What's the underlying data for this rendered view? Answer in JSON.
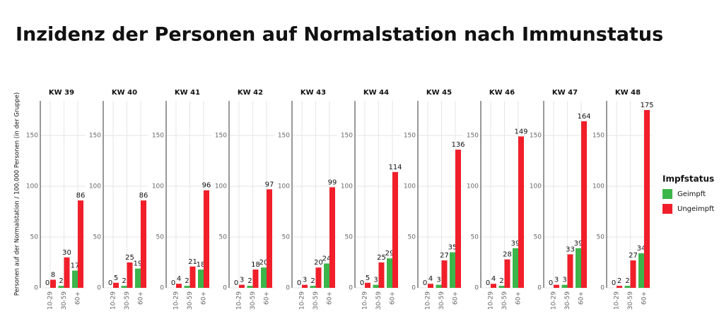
{
  "title": "Inzidenz der Personen auf Normalstation nach Immunstatus",
  "y_label": "Personen auf der Normalstation / 100.000 Personen (in der Gruppe)",
  "legend_title": "Impfstatus",
  "chart_data": [
    {
      "type": "bar",
      "title": "KW 39",
      "categories": [
        "10-29",
        "30-59",
        "60+"
      ],
      "series": [
        {
          "name": "Geimpft",
          "color": "#3cb54a",
          "values": [
            0,
            2,
            17
          ]
        },
        {
          "name": "Ungeimpft",
          "color": "#f01f2a",
          "values": [
            8,
            30,
            86
          ]
        }
      ],
      "ylim": [
        0,
        184
      ],
      "yticks": [
        0,
        50,
        100,
        150
      ],
      "grid": true
    },
    {
      "type": "bar",
      "title": "KW 40",
      "categories": [
        "10-29",
        "30-59",
        "60+"
      ],
      "series": [
        {
          "name": "Geimpft",
          "color": "#3cb54a",
          "values": [
            0,
            2,
            19
          ]
        },
        {
          "name": "Ungeimpft",
          "color": "#f01f2a",
          "values": [
            5,
            25,
            86
          ]
        }
      ],
      "ylim": [
        0,
        184
      ],
      "yticks": [
        0,
        50,
        100,
        150
      ],
      "grid": true
    },
    {
      "type": "bar",
      "title": "KW 41",
      "categories": [
        "10-29",
        "30-59",
        "60+"
      ],
      "series": [
        {
          "name": "Geimpft",
          "color": "#3cb54a",
          "values": [
            0,
            2,
            18
          ]
        },
        {
          "name": "Ungeimpft",
          "color": "#f01f2a",
          "values": [
            4,
            21,
            96
          ]
        }
      ],
      "ylim": [
        0,
        184
      ],
      "yticks": [
        0,
        50,
        100,
        150
      ],
      "grid": true
    },
    {
      "type": "bar",
      "title": "KW 42",
      "categories": [
        "10-29",
        "30-59",
        "60+"
      ],
      "series": [
        {
          "name": "Geimpft",
          "color": "#3cb54a",
          "values": [
            0,
            2,
            20
          ]
        },
        {
          "name": "Ungeimpft",
          "color": "#f01f2a",
          "values": [
            3,
            18,
            97
          ]
        }
      ],
      "ylim": [
        0,
        184
      ],
      "yticks": [
        0,
        50,
        100,
        150
      ],
      "grid": true
    },
    {
      "type": "bar",
      "title": "KW 43",
      "categories": [
        "10-29",
        "30-59",
        "60+"
      ],
      "series": [
        {
          "name": "Geimpft",
          "color": "#3cb54a",
          "values": [
            0,
            2,
            24
          ]
        },
        {
          "name": "Ungeimpft",
          "color": "#f01f2a",
          "values": [
            3,
            20,
            99
          ]
        }
      ],
      "ylim": [
        0,
        184
      ],
      "yticks": [
        0,
        50,
        100,
        150
      ],
      "grid": true
    },
    {
      "type": "bar",
      "title": "KW 44",
      "categories": [
        "10-29",
        "30-59",
        "60+"
      ],
      "series": [
        {
          "name": "Geimpft",
          "color": "#3cb54a",
          "values": [
            0,
            3,
            29
          ]
        },
        {
          "name": "Ungeimpft",
          "color": "#f01f2a",
          "values": [
            5,
            25,
            114
          ]
        }
      ],
      "ylim": [
        0,
        184
      ],
      "yticks": [
        0,
        50,
        100,
        150
      ],
      "grid": true
    },
    {
      "type": "bar",
      "title": "KW 45",
      "categories": [
        "10-29",
        "30-59",
        "60+"
      ],
      "series": [
        {
          "name": "Geimpft",
          "color": "#3cb54a",
          "values": [
            0,
            3,
            35
          ]
        },
        {
          "name": "Ungeimpft",
          "color": "#f01f2a",
          "values": [
            4,
            27,
            136
          ]
        }
      ],
      "ylim": [
        0,
        184
      ],
      "yticks": [
        0,
        50,
        100,
        150
      ],
      "grid": true
    },
    {
      "type": "bar",
      "title": "KW 46",
      "categories": [
        "10-29",
        "30-59",
        "60+"
      ],
      "series": [
        {
          "name": "Geimpft",
          "color": "#3cb54a",
          "values": [
            0,
            2,
            39
          ]
        },
        {
          "name": "Ungeimpft",
          "color": "#f01f2a",
          "values": [
            4,
            28,
            149
          ]
        }
      ],
      "ylim": [
        0,
        184
      ],
      "yticks": [
        0,
        50,
        100,
        150
      ],
      "grid": true
    },
    {
      "type": "bar",
      "title": "KW 47",
      "categories": [
        "10-29",
        "30-59",
        "60+"
      ],
      "series": [
        {
          "name": "Geimpft",
          "color": "#3cb54a",
          "values": [
            0,
            3,
            39
          ]
        },
        {
          "name": "Ungeimpft",
          "color": "#f01f2a",
          "values": [
            3,
            33,
            164
          ]
        }
      ],
      "ylim": [
        0,
        184
      ],
      "yticks": [
        0,
        50,
        100,
        150
      ],
      "grid": true
    },
    {
      "type": "bar",
      "title": "KW 48",
      "categories": [
        "10-29",
        "30-59",
        "60+"
      ],
      "series": [
        {
          "name": "Geimpft",
          "color": "#3cb54a",
          "values": [
            0,
            2,
            34
          ]
        },
        {
          "name": "Ungeimpft",
          "color": "#f01f2a",
          "values": [
            2,
            27,
            175
          ]
        }
      ],
      "ylim": [
        0,
        184
      ],
      "yticks": [
        0,
        50,
        100,
        150
      ],
      "grid": true
    }
  ]
}
